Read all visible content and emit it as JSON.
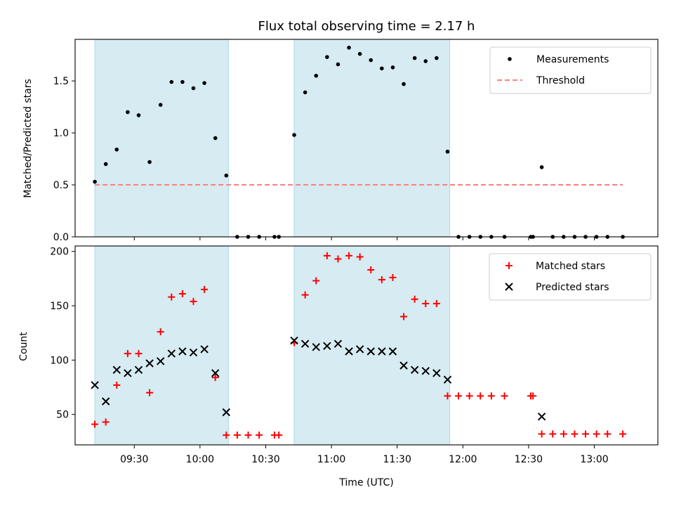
{
  "chart_data": [
    {
      "type": "scatter",
      "title": "Flux total observing time = 2.17 h",
      "ylabel": "Matched/Predicted stars",
      "xlabel": "",
      "ylim": [
        0,
        1.9
      ],
      "xlim_minutes": [
        "09:03",
        "13:29"
      ],
      "yticks": [
        0.0,
        0.5,
        1.0,
        1.5
      ],
      "ytick_labels": [
        "0.0",
        "0.5",
        "1.0",
        "1.5"
      ],
      "legend_position": "top-right",
      "shaded_intervals": [
        [
          "09:12",
          "10:13"
        ],
        [
          "10:43",
          "11:54"
        ]
      ],
      "shade_color": "#add8e6",
      "series": [
        {
          "name": "Measurements",
          "marker": "dot",
          "color": "#000000",
          "x": [
            "09:12",
            "09:17",
            "09:22",
            "09:27",
            "09:32",
            "09:37",
            "09:42",
            "09:47",
            "09:52",
            "09:57",
            "10:02",
            "10:07",
            "10:12",
            "10:17",
            "10:22",
            "10:27",
            "10:34",
            "10:36",
            "10:43",
            "10:48",
            "10:53",
            "10:58",
            "11:03",
            "11:08",
            "11:13",
            "11:18",
            "11:23",
            "11:28",
            "11:33",
            "11:38",
            "11:43",
            "11:48",
            "11:53",
            "11:58",
            "12:03",
            "12:08",
            "12:13",
            "12:19",
            "12:31",
            "12:32",
            "12:36",
            "12:41",
            "12:46",
            "12:51",
            "12:56",
            "13:01",
            "13:06",
            "13:13"
          ],
          "y": [
            0.53,
            0.7,
            0.84,
            1.2,
            1.17,
            0.72,
            1.27,
            1.49,
            1.49,
            1.43,
            1.48,
            0.95,
            0.59,
            0.0,
            0.0,
            0.0,
            0.0,
            0.0,
            0.98,
            1.39,
            1.55,
            1.73,
            1.66,
            1.82,
            1.76,
            1.7,
            1.62,
            1.63,
            1.47,
            1.72,
            1.69,
            1.72,
            0.82,
            0.0,
            0.0,
            0.0,
            0.0,
            0.0,
            0.0,
            0.0,
            0.67,
            0.0,
            0.0,
            0.0,
            0.0,
            0.0,
            0.0,
            0.0
          ]
        },
        {
          "name": "Threshold",
          "marker": "dashed-line",
          "color": "#ff7f7f",
          "x": [
            "09:12",
            "13:13"
          ],
          "y": [
            0.5,
            0.5
          ]
        }
      ]
    },
    {
      "type": "scatter",
      "title": "",
      "ylabel": "Count",
      "xlabel": "Time (UTC)",
      "ylim": [
        22,
        205
      ],
      "xlim_minutes": [
        "09:03",
        "13:29"
      ],
      "yticks": [
        50,
        100,
        150,
        200
      ],
      "ytick_labels": [
        "50",
        "100",
        "150",
        "200"
      ],
      "xticks": [
        "09:30",
        "10:00",
        "10:30",
        "11:00",
        "11:30",
        "12:00",
        "12:30",
        "13:00"
      ],
      "xtick_labels": [
        "09:30",
        "10:00",
        "10:30",
        "11:00",
        "11:30",
        "12:00",
        "12:30",
        "13:00"
      ],
      "legend_position": "top-right",
      "shaded_intervals": [
        [
          "09:12",
          "10:13"
        ],
        [
          "10:43",
          "11:54"
        ]
      ],
      "shade_color": "#add8e6",
      "series": [
        {
          "name": "Matched stars",
          "marker": "plus",
          "color": "#ff0000",
          "x": [
            "09:12",
            "09:17",
            "09:22",
            "09:27",
            "09:32",
            "09:37",
            "09:42",
            "09:47",
            "09:52",
            "09:57",
            "10:02",
            "10:07",
            "10:12",
            "10:17",
            "10:22",
            "10:27",
            "10:34",
            "10:36",
            "10:43",
            "10:48",
            "10:53",
            "10:58",
            "11:03",
            "11:08",
            "11:13",
            "11:18",
            "11:23",
            "11:28",
            "11:33",
            "11:38",
            "11:43",
            "11:48",
            "11:53",
            "11:58",
            "12:03",
            "12:08",
            "12:13",
            "12:19",
            "12:31",
            "12:32",
            "12:36",
            "12:41",
            "12:46",
            "12:51",
            "12:56",
            "13:01",
            "13:06",
            "13:13"
          ],
          "y": [
            41,
            43,
            77,
            106,
            106,
            70,
            126,
            158,
            161,
            154,
            165,
            84,
            31,
            31,
            31,
            31,
            31,
            31,
            116,
            160,
            173,
            196,
            193,
            196,
            195,
            183,
            174,
            176,
            140,
            156,
            152,
            152,
            67,
            67,
            67,
            67,
            67,
            67,
            67,
            67,
            32,
            32,
            32,
            32,
            32,
            32,
            32,
            32
          ]
        },
        {
          "name": "Predicted stars",
          "marker": "x",
          "color": "#000000",
          "x": [
            "09:12",
            "09:17",
            "09:22",
            "09:27",
            "09:32",
            "09:37",
            "09:42",
            "09:47",
            "09:52",
            "09:57",
            "10:02",
            "10:07",
            "10:12",
            "10:43",
            "10:48",
            "10:53",
            "10:58",
            "11:03",
            "11:08",
            "11:13",
            "11:18",
            "11:23",
            "11:28",
            "11:33",
            "11:38",
            "11:43",
            "11:48",
            "11:53",
            "12:36"
          ],
          "y": [
            77,
            62,
            91,
            88,
            91,
            97,
            99,
            106,
            108,
            107,
            110,
            88,
            52,
            118,
            115,
            112,
            113,
            115,
            108,
            110,
            108,
            108,
            108,
            95,
            91,
            90,
            88,
            82,
            48
          ]
        }
      ]
    }
  ]
}
